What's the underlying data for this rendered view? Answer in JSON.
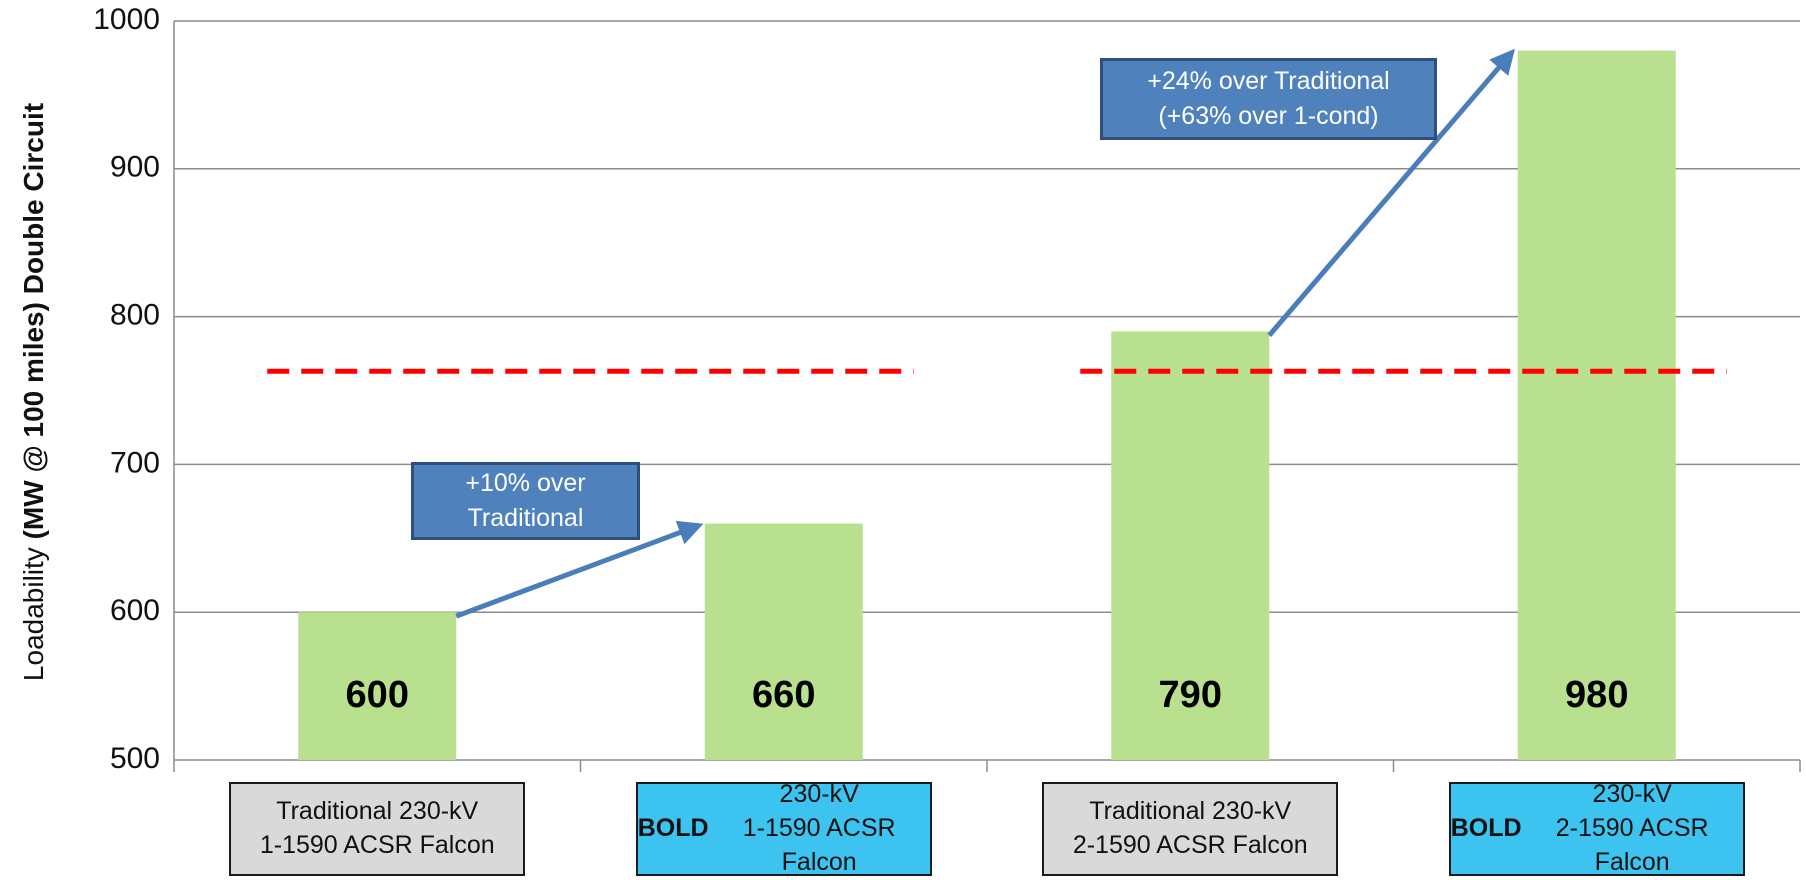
{
  "chart_data": {
    "type": "bar",
    "ylabel": "Loadability",
    "ylabel_bold": "(MW @ 100 miles) Double Circuit",
    "categories": [
      "Traditional 230-kV\n1-1590 ACSR Falcon",
      "BOLD 230-kV\n1-1590 ACSR Falcon",
      "Traditional 230-kV\n2-1590 ACSR Falcon",
      "BOLD 230-kV\n2-1590 ACSR Falcon"
    ],
    "category_bold_first_word": [
      false,
      true,
      false,
      true
    ],
    "category_box_colors": [
      "#d9d9d9",
      "#3cc3f0",
      "#d9d9d9",
      "#3cc3f0"
    ],
    "values": [
      600,
      660,
      790,
      980
    ],
    "color": "#b9e08f",
    "ylim": [
      500,
      1000
    ],
    "yticks": [
      500,
      600,
      700,
      800,
      900,
      1000
    ],
    "grid": true,
    "reference_lines": [
      {
        "value": 763,
        "color": "#ff0000",
        "categories": [
          0,
          1
        ]
      },
      {
        "value": 763,
        "color": "#ff0000",
        "categories": [
          2,
          3
        ]
      }
    ],
    "annotations": [
      {
        "text": "+10% over\nTraditional",
        "from": 0,
        "to": 1
      },
      {
        "text": "+24% over Traditional\n(+63% over 1-cond)",
        "from": 2,
        "to": 3
      }
    ]
  }
}
